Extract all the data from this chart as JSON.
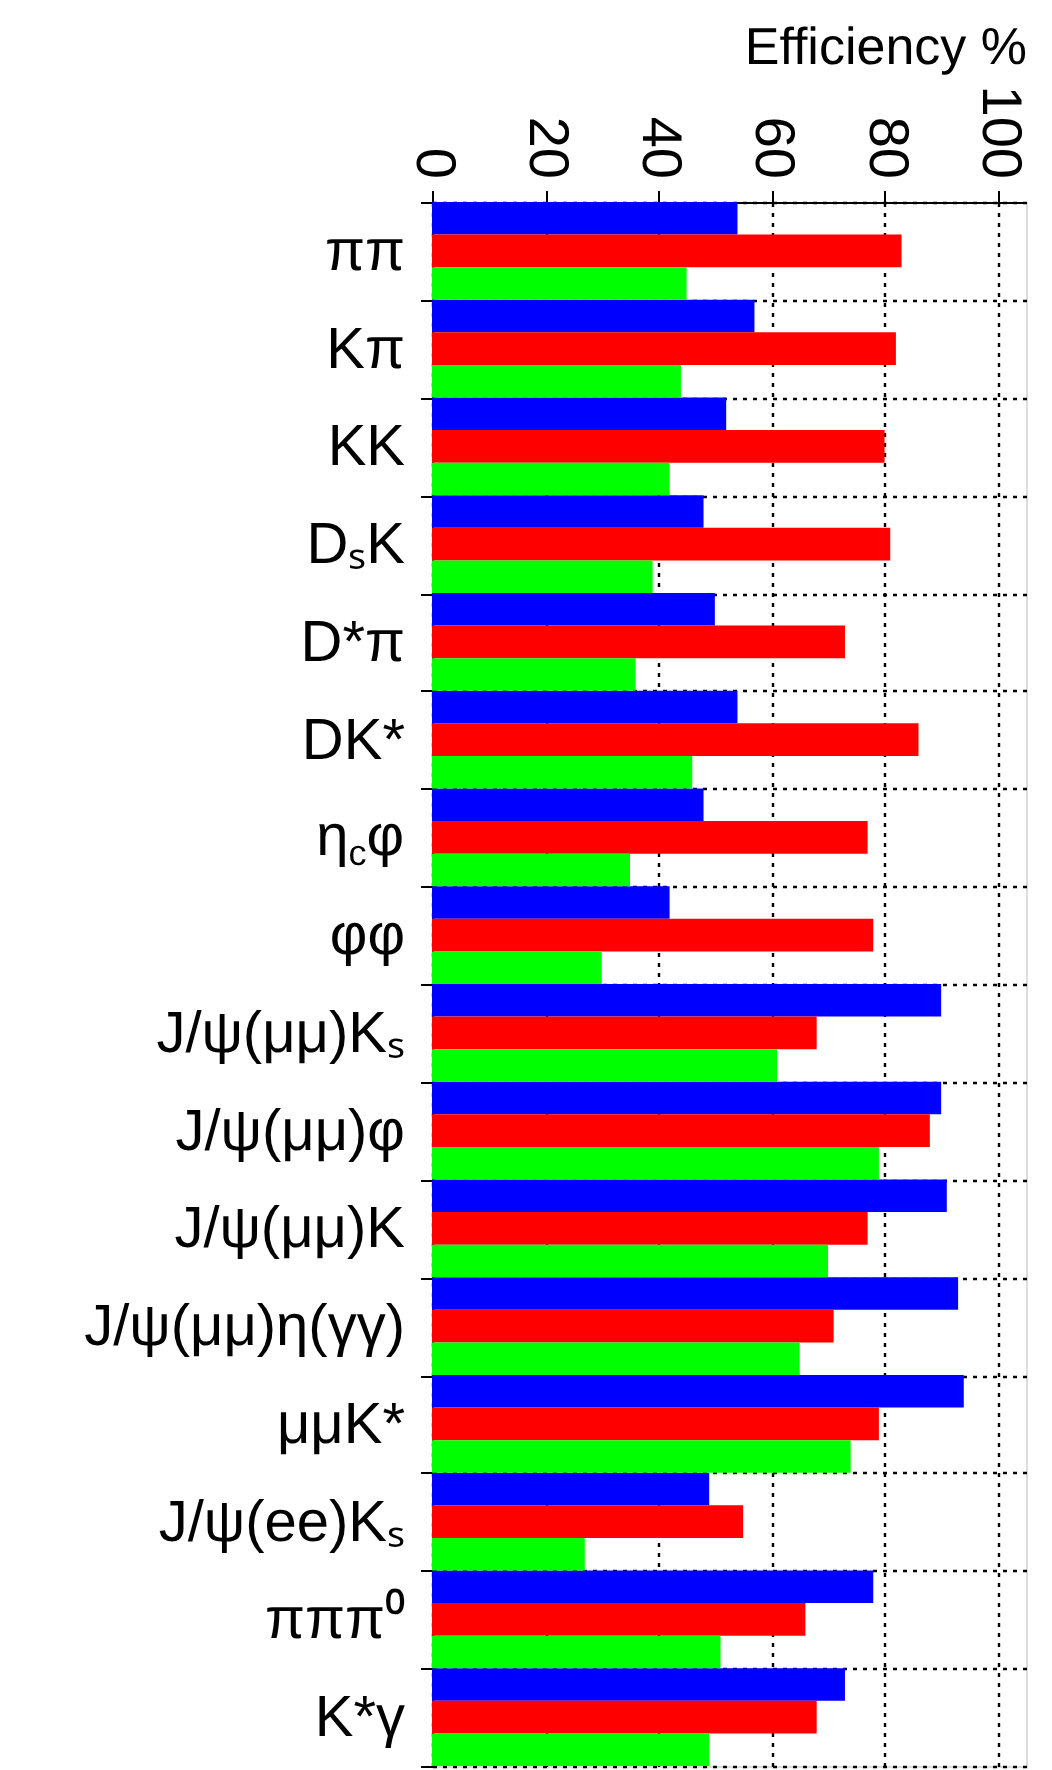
{
  "chart_data": {
    "type": "bar",
    "orientation": "horizontal",
    "xlabel": "Efficiency %",
    "categories": [
      "ππ",
      "Kπ",
      "KK",
      "DₛK",
      "D*π",
      "DK*",
      "η$_{c}$φ",
      "φφ",
      "J/ψ(μμ)Kₛ",
      "J/ψ(μμ)φ",
      "J/ψ(μμ)K",
      "J/ψ(μμ)η(γγ)",
      "μμK*",
      "J/ψ(ee)Kₛ",
      "πππ⁰",
      "K*γ"
    ],
    "series": [
      {
        "color": "#0000ff",
        "values": [
          54,
          57,
          52,
          48,
          50,
          54,
          48,
          42,
          90,
          90,
          91,
          93,
          94,
          49,
          78,
          73
        ]
      },
      {
        "color": "#ff0000",
        "values": [
          83,
          82,
          80,
          81,
          73,
          86,
          77,
          78,
          68,
          88,
          77,
          71,
          79,
          55,
          66,
          68
        ]
      },
      {
        "color": "#00ff00",
        "values": [
          45,
          44,
          42,
          39,
          36,
          46,
          35,
          30,
          61,
          79,
          70,
          65,
          74,
          27,
          51,
          49
        ]
      }
    ],
    "xlim": [
      0,
      105
    ],
    "xticks": [
      0,
      20,
      40,
      60,
      80,
      100
    ],
    "grid": true
  }
}
